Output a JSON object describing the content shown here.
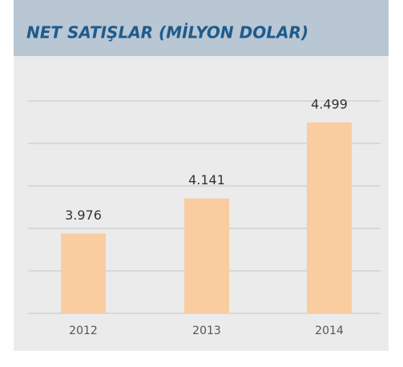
{
  "chart_data": {
    "type": "bar",
    "title": "NET SATIŞLAR (MİLYON DOLAR)",
    "categories": [
      "2012",
      "2013",
      "2014"
    ],
    "values": [
      3976,
      4141,
      4499
    ],
    "value_labels": [
      "3.976",
      "4.141",
      "4.499"
    ],
    "color": "#f9cda0",
    "ylim": [
      3600,
      4600
    ],
    "yticks": [
      3600,
      3800,
      4000,
      4200,
      4400,
      4600
    ],
    "grid": true
  }
}
